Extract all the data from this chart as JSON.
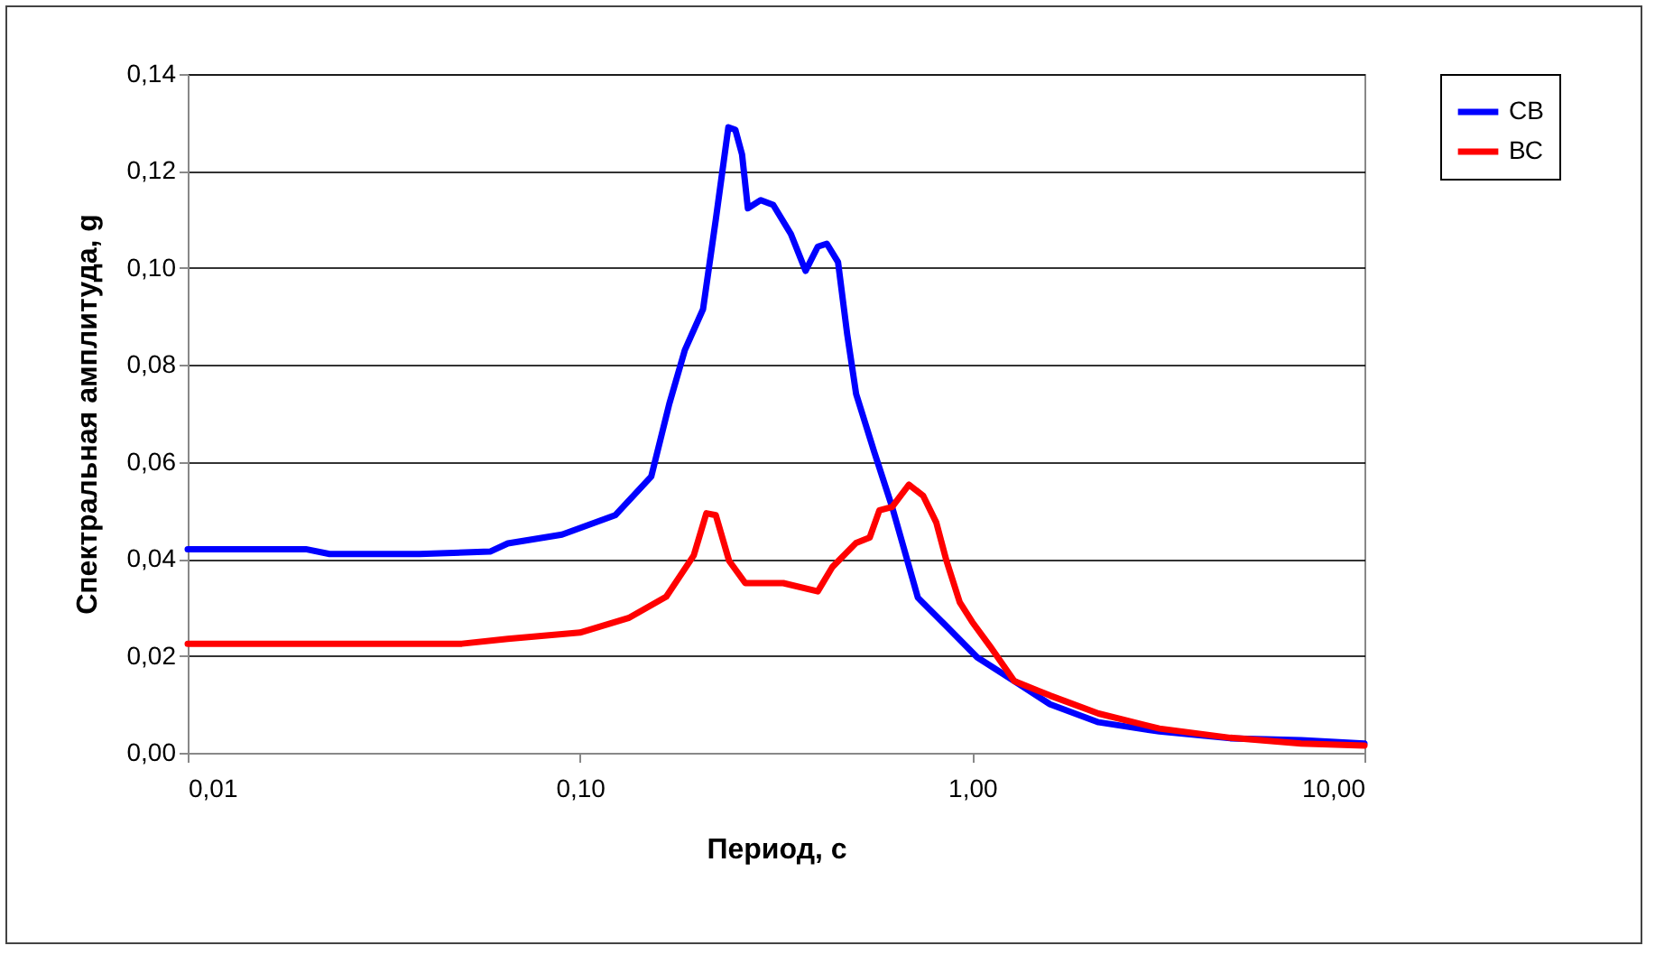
{
  "chart_data": {
    "type": "line",
    "xlabel": "Период, с",
    "ylabel": "Спектральная амплитуда, g",
    "log": "x",
    "xlim": [
      0.01,
      10
    ],
    "xticks": [
      {
        "value": 0.01,
        "label": "0,01"
      },
      {
        "value": 0.1,
        "label": "0,10"
      },
      {
        "value": 1,
        "label": "1,00"
      },
      {
        "value": 10,
        "label": "10,00"
      }
    ],
    "ylim": [
      0,
      0.14
    ],
    "yticks": [
      {
        "value": 0,
        "label": "0,00"
      },
      {
        "value": 0.02,
        "label": "0,02"
      },
      {
        "value": 0.04,
        "label": "0,04"
      },
      {
        "value": 0.06,
        "label": "0,06"
      },
      {
        "value": 0.08,
        "label": "0,08"
      },
      {
        "value": 0.1,
        "label": "0,10"
      },
      {
        "value": 0.12,
        "label": "0,12"
      },
      {
        "value": 0.14,
        "label": "0,14"
      }
    ],
    "grid": "y",
    "legend": "right",
    "marker": "none",
    "line_style": "solid",
    "series": [
      {
        "name": "СВ",
        "color": "#0000ff",
        "x": [
          0.01,
          0.02,
          0.023,
          0.039,
          0.059,
          0.0655,
          0.09,
          0.123,
          0.152,
          0.169,
          0.185,
          0.206,
          0.222,
          0.239,
          0.249,
          0.259,
          0.268,
          0.289,
          0.311,
          0.345,
          0.376,
          0.404,
          0.426,
          0.455,
          0.48,
          0.506,
          0.563,
          0.625,
          0.727,
          0.862,
          1.03,
          1.28,
          1.58,
          2.1,
          3.0,
          4.55,
          6.9,
          10
        ],
        "values": [
          0.042,
          0.042,
          0.041,
          0.041,
          0.0415,
          0.0432,
          0.045,
          0.049,
          0.057,
          0.072,
          0.083,
          0.0915,
          0.11,
          0.129,
          0.1285,
          0.1234,
          0.1123,
          0.114,
          0.113,
          0.107,
          0.0994,
          0.1044,
          0.105,
          0.1012,
          0.0864,
          0.074,
          0.062,
          0.0507,
          0.032,
          0.026,
          0.0197,
          0.0148,
          0.01,
          0.0063,
          0.0044,
          0.003,
          0.0026,
          0.0019
        ]
      },
      {
        "name": "ВС",
        "color": "#ff0000",
        "x": [
          0.01,
          0.05,
          0.0655,
          0.1,
          0.133,
          0.166,
          0.195,
          0.21,
          0.222,
          0.24,
          0.264,
          0.33,
          0.404,
          0.44,
          0.506,
          0.548,
          0.58,
          0.625,
          0.69,
          0.75,
          0.81,
          0.86,
          0.93,
          1.0,
          1.11,
          1.28,
          1.58,
          2.1,
          3.0,
          4.55,
          6.9,
          10
        ],
        "values": [
          0.0225,
          0.0225,
          0.0235,
          0.0248,
          0.0278,
          0.0322,
          0.0407,
          0.0494,
          0.049,
          0.0396,
          0.035,
          0.035,
          0.0333,
          0.0383,
          0.0433,
          0.0444,
          0.05,
          0.0507,
          0.0553,
          0.053,
          0.0475,
          0.0396,
          0.031,
          0.027,
          0.022,
          0.0148,
          0.0118,
          0.0081,
          0.005,
          0.0031,
          0.0019,
          0.0015
        ]
      }
    ]
  }
}
